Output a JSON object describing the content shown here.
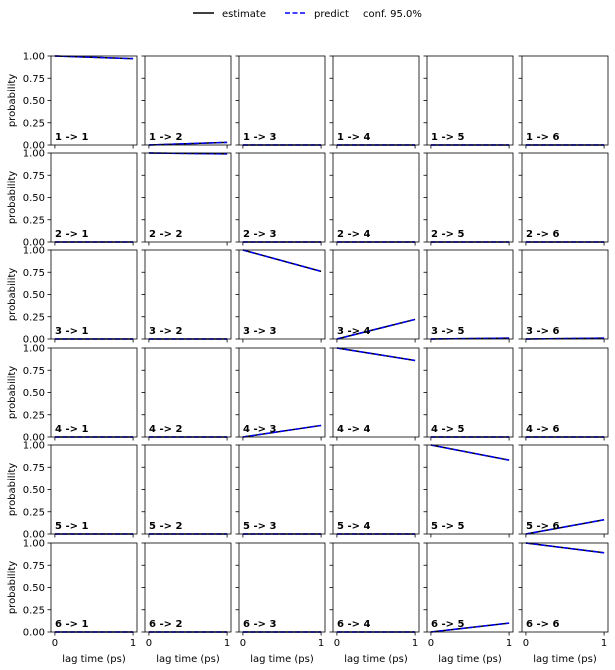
{
  "chart_data": {
    "type": "line",
    "rows": 6,
    "cols": 6,
    "x": [
      0,
      1
    ],
    "xlim": [
      -0.05,
      1.05
    ],
    "ylim": [
      0,
      1
    ],
    "xticks": [
      "0",
      "1"
    ],
    "yticks": [
      "0.00",
      "0.25",
      "0.50",
      "0.75",
      "1.00"
    ],
    "xlabel": "lag time (ps)",
    "ylabel": "probability",
    "legend": {
      "placement": "top-center",
      "entries": [
        {
          "label": "estimate",
          "style": "solid",
          "color": "#000000"
        },
        {
          "label": "predict",
          "style": "dashed",
          "color": "#0000ff"
        },
        {
          "label": "conf. 95.0%",
          "style": "none",
          "color": "#ffffff"
        }
      ]
    },
    "series_colors": {
      "estimate": "#000000",
      "predict": "#0000ff"
    },
    "panels": [
      {
        "label": "1 -> 1",
        "estimate": [
          1.0,
          0.97
        ],
        "predict": [
          1.0,
          0.97
        ]
      },
      {
        "label": "1 -> 2",
        "estimate": [
          0.0,
          0.03
        ],
        "predict": [
          0.0,
          0.03
        ]
      },
      {
        "label": "1 -> 3",
        "estimate": [
          0.0,
          0.0
        ],
        "predict": [
          0.0,
          0.0
        ]
      },
      {
        "label": "1 -> 4",
        "estimate": [
          0.0,
          0.0
        ],
        "predict": [
          0.0,
          0.0
        ]
      },
      {
        "label": "1 -> 5",
        "estimate": [
          0.0,
          0.0
        ],
        "predict": [
          0.0,
          0.0
        ]
      },
      {
        "label": "1 -> 6",
        "estimate": [
          0.0,
          0.0
        ],
        "predict": [
          0.0,
          0.0
        ]
      },
      {
        "label": "2 -> 1",
        "estimate": [
          0.0,
          0.0
        ],
        "predict": [
          0.0,
          0.0
        ]
      },
      {
        "label": "2 -> 2",
        "estimate": [
          1.0,
          0.99
        ],
        "predict": [
          1.0,
          0.99
        ]
      },
      {
        "label": "2 -> 3",
        "estimate": [
          0.0,
          0.0
        ],
        "predict": [
          0.0,
          0.0
        ]
      },
      {
        "label": "2 -> 4",
        "estimate": [
          0.0,
          0.0
        ],
        "predict": [
          0.0,
          0.0
        ]
      },
      {
        "label": "2 -> 5",
        "estimate": [
          0.0,
          0.0
        ],
        "predict": [
          0.0,
          0.0
        ]
      },
      {
        "label": "2 -> 6",
        "estimate": [
          0.0,
          0.0
        ],
        "predict": [
          0.0,
          0.0
        ]
      },
      {
        "label": "3 -> 1",
        "estimate": [
          0.0,
          0.0
        ],
        "predict": [
          0.0,
          0.0
        ]
      },
      {
        "label": "3 -> 2",
        "estimate": [
          0.0,
          0.0
        ],
        "predict": [
          0.0,
          0.0
        ]
      },
      {
        "label": "3 -> 3",
        "estimate": [
          1.0,
          0.76
        ],
        "predict": [
          1.0,
          0.76
        ]
      },
      {
        "label": "3 -> 4",
        "estimate": [
          0.0,
          0.22
        ],
        "predict": [
          0.0,
          0.22
        ]
      },
      {
        "label": "3 -> 5",
        "estimate": [
          0.0,
          0.01
        ],
        "predict": [
          0.0,
          0.01
        ]
      },
      {
        "label": "3 -> 6",
        "estimate": [
          0.0,
          0.01
        ],
        "predict": [
          0.0,
          0.01
        ]
      },
      {
        "label": "4 -> 1",
        "estimate": [
          0.0,
          0.0
        ],
        "predict": [
          0.0,
          0.0
        ]
      },
      {
        "label": "4 -> 2",
        "estimate": [
          0.0,
          0.0
        ],
        "predict": [
          0.0,
          0.0
        ]
      },
      {
        "label": "4 -> 3",
        "estimate": [
          0.0,
          0.13
        ],
        "predict": [
          0.0,
          0.13
        ]
      },
      {
        "label": "4 -> 4",
        "estimate": [
          1.0,
          0.86
        ],
        "predict": [
          1.0,
          0.86
        ]
      },
      {
        "label": "4 -> 5",
        "estimate": [
          0.0,
          0.0
        ],
        "predict": [
          0.0,
          0.0
        ]
      },
      {
        "label": "4 -> 6",
        "estimate": [
          0.0,
          0.0
        ],
        "predict": [
          0.0,
          0.0
        ]
      },
      {
        "label": "5 -> 1",
        "estimate": [
          0.0,
          0.0
        ],
        "predict": [
          0.0,
          0.0
        ]
      },
      {
        "label": "5 -> 2",
        "estimate": [
          0.0,
          0.0
        ],
        "predict": [
          0.0,
          0.0
        ]
      },
      {
        "label": "5 -> 3",
        "estimate": [
          0.0,
          0.0
        ],
        "predict": [
          0.0,
          0.0
        ]
      },
      {
        "label": "5 -> 4",
        "estimate": [
          0.0,
          0.0
        ],
        "predict": [
          0.0,
          0.0
        ]
      },
      {
        "label": "5 -> 5",
        "estimate": [
          1.0,
          0.83
        ],
        "predict": [
          1.0,
          0.83
        ]
      },
      {
        "label": "5 -> 6",
        "estimate": [
          0.0,
          0.16
        ],
        "predict": [
          0.0,
          0.16
        ]
      },
      {
        "label": "6 -> 1",
        "estimate": [
          0.0,
          0.0
        ],
        "predict": [
          0.0,
          0.0
        ]
      },
      {
        "label": "6 -> 2",
        "estimate": [
          0.0,
          0.0
        ],
        "predict": [
          0.0,
          0.0
        ]
      },
      {
        "label": "6 -> 3",
        "estimate": [
          0.0,
          0.0
        ],
        "predict": [
          0.0,
          0.0
        ]
      },
      {
        "label": "6 -> 4",
        "estimate": [
          0.0,
          0.0
        ],
        "predict": [
          0.0,
          0.0
        ]
      },
      {
        "label": "6 -> 5",
        "estimate": [
          0.0,
          0.1
        ],
        "predict": [
          0.0,
          0.1
        ]
      },
      {
        "label": "6 -> 6",
        "estimate": [
          1.0,
          0.89
        ],
        "predict": [
          1.0,
          0.89
        ]
      }
    ]
  }
}
